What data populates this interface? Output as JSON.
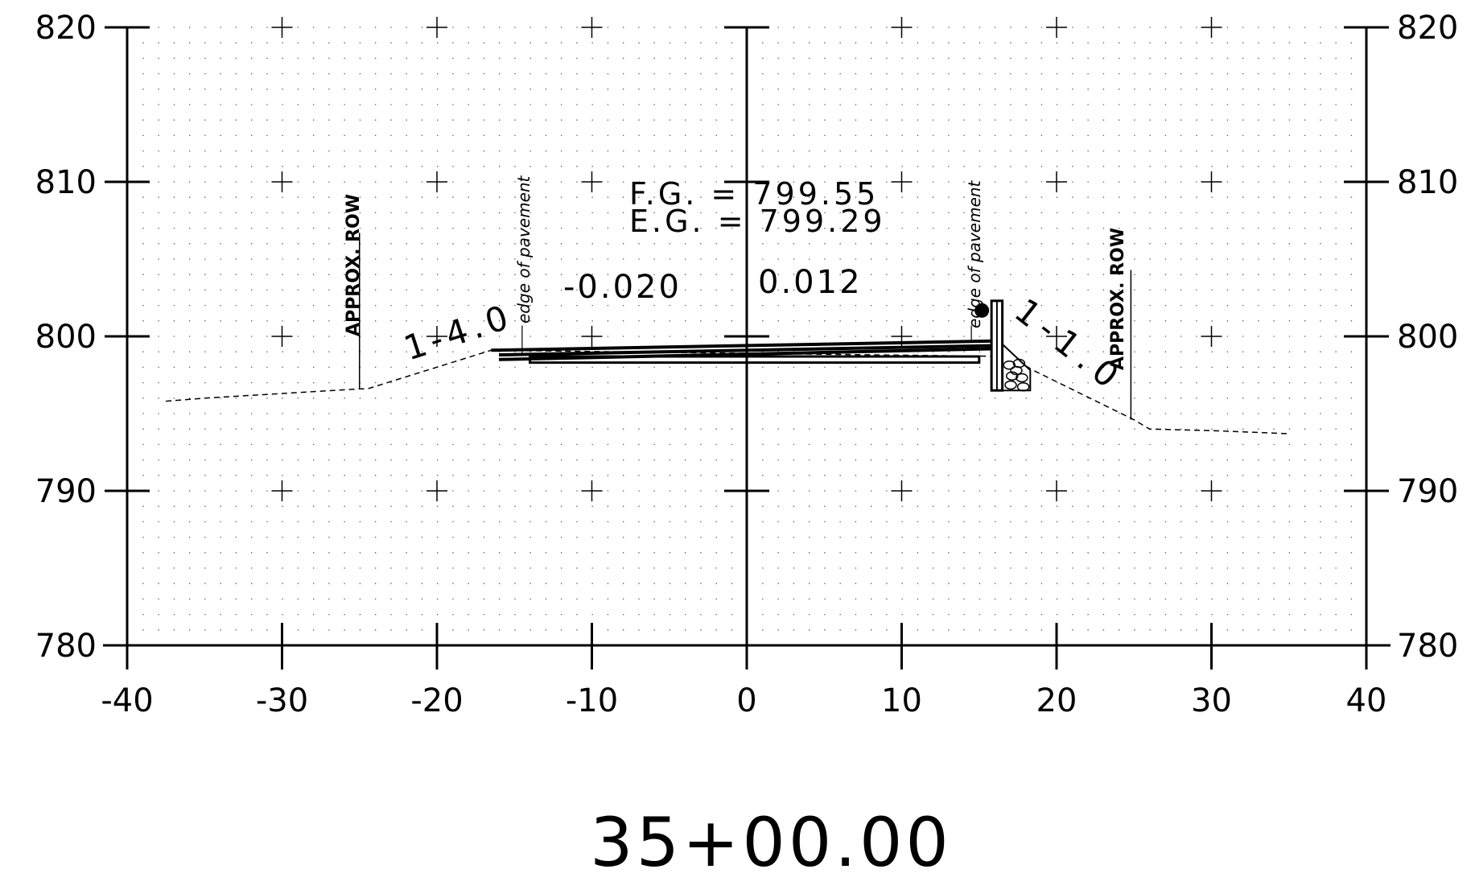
{
  "chart_data": {
    "type": "cross-section",
    "station": "35+00.00",
    "xlim": [
      -40,
      40
    ],
    "ylim": [
      780,
      820
    ],
    "x_ticks": [
      "-40",
      "-30",
      "-20",
      "-10",
      "0",
      "10",
      "20",
      "30",
      "40"
    ],
    "y_ticks": [
      "780",
      "790",
      "800",
      "810",
      "820"
    ],
    "grid": true,
    "existing_ground": {
      "style": "dashed",
      "points": [
        [
          -37.5,
          795.8
        ],
        [
          -35,
          796.0
        ],
        [
          -30,
          796.3
        ],
        [
          -25,
          796.6
        ],
        [
          -24.5,
          796.6
        ],
        [
          -16.5,
          799.1
        ],
        [
          17.0,
          798.7
        ],
        [
          18.5,
          797.8
        ],
        [
          25.0,
          794.6
        ],
        [
          26.0,
          794.0
        ],
        [
          30.0,
          793.9
        ],
        [
          35.0,
          793.7
        ]
      ]
    },
    "pavement_lines": [
      {
        "points": [
          [
            -16.5,
            799.1
          ],
          [
            16.0,
            799.7
          ]
        ]
      },
      {
        "points": [
          [
            -16.0,
            798.8
          ],
          [
            16.0,
            799.4
          ]
        ]
      },
      {
        "points": [
          [
            -16.0,
            798.5
          ],
          [
            16.0,
            799.2
          ]
        ]
      }
    ],
    "base_layer": {
      "points": [
        [
          -14.0,
          798.7
        ],
        [
          15.0,
          798.7
        ],
        [
          15.0,
          798.3
        ],
        [
          -14.0,
          798.3
        ]
      ]
    },
    "curb": {
      "x_left": 15.8,
      "x_right": 16.5,
      "y_top": 802.3,
      "y_bottom": 796.5
    },
    "riprap": {
      "points": [
        [
          16.5,
          799.5
        ],
        [
          18.3,
          797.8
        ],
        [
          18.3,
          796.5
        ],
        [
          16.5,
          796.5
        ]
      ]
    },
    "centerline_x": 0,
    "annotations": {
      "fg": "F.G. = 799.55",
      "eg": "E.G. = 799.29",
      "grade_left": "-0.020",
      "grade_right": "0.012",
      "slope_left": "1-4.0",
      "slope_right": "1-1.0",
      "edge_left": "edge of pavement",
      "edge_right": "edge of pavement",
      "row_left": "APPROX. ROW",
      "row_right": "APPROX. ROW"
    },
    "row_marks": {
      "left_x": -25.0,
      "right_x": 24.8
    },
    "edge_marks": {
      "left_x": -14.5,
      "right_x": 14.5
    }
  }
}
